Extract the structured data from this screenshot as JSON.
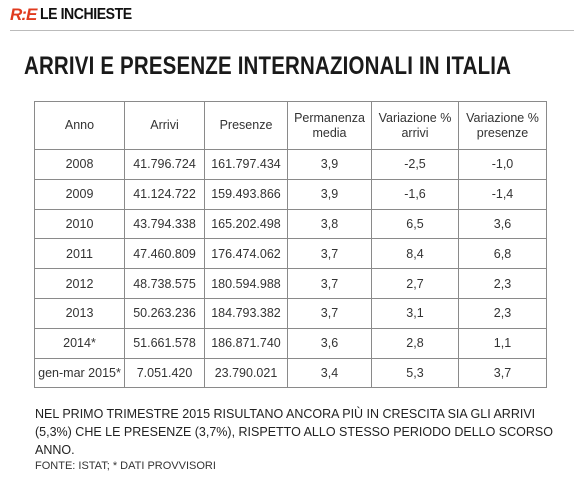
{
  "header": {
    "logo": "R:E",
    "section": "LE INCHIESTE"
  },
  "title": "ARRIVI E PRESENZE INTERNAZIONALI IN ITALIA",
  "table": {
    "columns": [
      "Anno",
      "Arrivi",
      "Presenze",
      "Permanenza media",
      "Variazione % arrivi",
      "Variazione % presenze"
    ],
    "rows": [
      [
        "2008",
        "41.796.724",
        "161.797.434",
        "3,9",
        "-2,5",
        "-1,0"
      ],
      [
        "2009",
        "41.124.722",
        "159.493.866",
        "3,9",
        "-1,6",
        "-1,4"
      ],
      [
        "2010",
        "43.794.338",
        "165.202.498",
        "3,8",
        "6,5",
        "3,6"
      ],
      [
        "2011",
        "47.460.809",
        "176.474.062",
        "3,7",
        "8,4",
        "6,8"
      ],
      [
        "2012",
        "48.738.575",
        "180.594.988",
        "3,7",
        "2,7",
        "2,3"
      ],
      [
        "2013",
        "50.263.236",
        "184.793.382",
        "3,7",
        "3,1",
        "2,3"
      ],
      [
        "2014*",
        "51.661.578",
        "186.871.740",
        "3,6",
        "2,8",
        "1,1"
      ],
      [
        "gen-mar 2015*",
        "7.051.420",
        "23.790.021",
        "3,4",
        "5,3",
        "3,7"
      ]
    ]
  },
  "note": "NEL PRIMO TRIMESTRE 2015 RISULTANO ANCORA PIÙ IN CRESCITA SIA GLI ARRIVI (5,3%) CHE LE PRESENZE (3,7%), RISPETTO ALLO STESSO PERIODO DELLO SCORSO ANNO.",
  "source": "FONTE: ISTAT; * DATI PROVVISORI"
}
